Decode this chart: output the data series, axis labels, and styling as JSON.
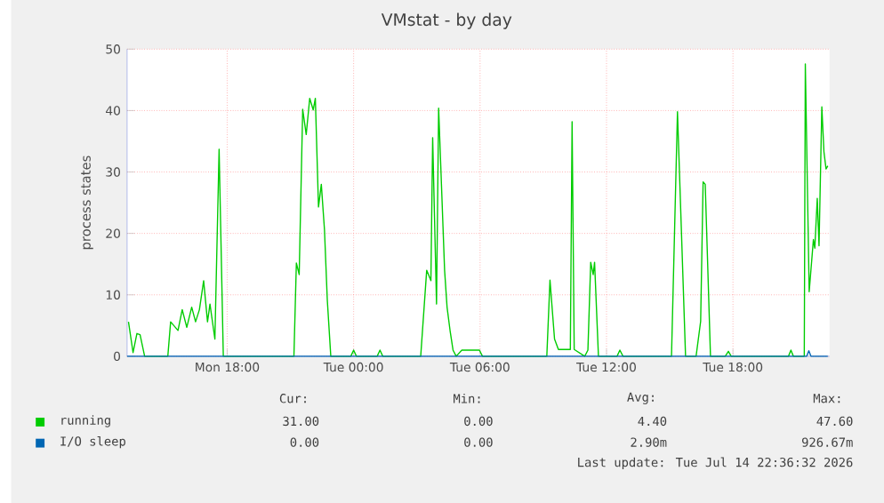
{
  "chart_data": {
    "type": "line",
    "title": "VMstat - by day",
    "ylabel": "process states",
    "xlim": [
      "2026-07-13T13:15",
      "2026-07-14T22:35"
    ],
    "ylim": [
      0,
      50
    ],
    "xticks": [
      {
        "value": "2026-07-13T18:00",
        "label": "Mon 18:00"
      },
      {
        "value": "2026-07-14T00:00",
        "label": "Tue 00:00"
      },
      {
        "value": "2026-07-14T06:00",
        "label": "Tue 06:00"
      },
      {
        "value": "2026-07-14T12:00",
        "label": "Tue 12:00"
      },
      {
        "value": "2026-07-14T18:00",
        "label": "Tue 18:00"
      }
    ],
    "yticks": [
      0,
      10,
      20,
      30,
      40,
      50
    ],
    "grid": true,
    "legend": "bottom",
    "series": [
      {
        "name": "running",
        "color": "#00cc00",
        "x": [
          "2026-07-13T13:19",
          "2026-07-13T13:32",
          "2026-07-13T13:43",
          "2026-07-13T13:52",
          "2026-07-13T14:05",
          "2026-07-13T15:11",
          "2026-07-13T15:19",
          "2026-07-13T15:40",
          "2026-07-13T15:52",
          "2026-07-13T16:05",
          "2026-07-13T16:19",
          "2026-07-13T16:30",
          "2026-07-13T16:41",
          "2026-07-13T16:53",
          "2026-07-13T17:04",
          "2026-07-13T17:11",
          "2026-07-13T17:25",
          "2026-07-13T17:37",
          "2026-07-13T17:49",
          "2026-07-13T21:10",
          "2026-07-13T21:17",
          "2026-07-13T21:25",
          "2026-07-13T21:35",
          "2026-07-13T21:45",
          "2026-07-13T21:55",
          "2026-07-13T22:05",
          "2026-07-13T22:11",
          "2026-07-13T22:20",
          "2026-07-13T22:28",
          "2026-07-13T22:37",
          "2026-07-13T22:45",
          "2026-07-13T22:55",
          "2026-07-13T23:52",
          "2026-07-14T00:00",
          "2026-07-14T00:08",
          "2026-07-14T01:07",
          "2026-07-14T01:15",
          "2026-07-14T01:23",
          "2026-07-14T03:11",
          "2026-07-14T03:28",
          "2026-07-14T03:40",
          "2026-07-14T03:45",
          "2026-07-14T03:56",
          "2026-07-14T04:02",
          "2026-07-14T04:10",
          "2026-07-14T04:19",
          "2026-07-14T04:26",
          "2026-07-14T04:35",
          "2026-07-14T04:43",
          "2026-07-14T04:52",
          "2026-07-14T05:08",
          "2026-07-14T05:58",
          "2026-07-14T06:07",
          "2026-07-14T09:10",
          "2026-07-14T09:19",
          "2026-07-14T09:32",
          "2026-07-14T09:43",
          "2026-07-14T10:17",
          "2026-07-14T10:22",
          "2026-07-14T10:28",
          "2026-07-14T10:58",
          "2026-07-14T11:07",
          "2026-07-14T11:15",
          "2026-07-14T11:22",
          "2026-07-14T11:26",
          "2026-07-14T11:37",
          "2026-07-14T12:30",
          "2026-07-14T12:38",
          "2026-07-14T12:47",
          "2026-07-14T15:05",
          "2026-07-14T15:22",
          "2026-07-14T15:45",
          "2026-07-14T16:15",
          "2026-07-14T16:28",
          "2026-07-14T16:35",
          "2026-07-14T16:41",
          "2026-07-14T16:56",
          "2026-07-14T17:38",
          "2026-07-14T17:47",
          "2026-07-14T17:55",
          "2026-07-14T20:38",
          "2026-07-14T20:45",
          "2026-07-14T20:52",
          "2026-07-14T21:23",
          "2026-07-14T21:26",
          "2026-07-14T21:37",
          "2026-07-14T21:49",
          "2026-07-14T21:53",
          "2026-07-14T22:00",
          "2026-07-14T22:05",
          "2026-07-14T22:13",
          "2026-07-14T22:19",
          "2026-07-14T22:25",
          "2026-07-14T22:30"
        ],
        "values": [
          5.6,
          0.6,
          3.7,
          3.5,
          0,
          0,
          5.6,
          4.2,
          7.6,
          4.7,
          8,
          5.6,
          7.6,
          12.3,
          5.6,
          8.5,
          2.8,
          33.7,
          0,
          0,
          15.2,
          13.3,
          40.2,
          36.1,
          42,
          40.1,
          42,
          24.3,
          28,
          20.6,
          9.2,
          0,
          0,
          1,
          0,
          0,
          1,
          0,
          0,
          14,
          12.3,
          35.6,
          8.5,
          40.4,
          28,
          14,
          8,
          4,
          1,
          0,
          1,
          1,
          0,
          0,
          12.4,
          2.8,
          1.1,
          1.1,
          38.2,
          1.1,
          0,
          1,
          15.3,
          13.3,
          15.3,
          0,
          0,
          1,
          0,
          0,
          39.8,
          0,
          0,
          5.7,
          28.4,
          28,
          0,
          0,
          0.8,
          0,
          0,
          1,
          0,
          0,
          47.6,
          10.5,
          19,
          17.6,
          25.7,
          18,
          40.6,
          33.3,
          30.5,
          31
        ]
      },
      {
        "name": "I/O sleep",
        "color": "#0066b3",
        "x": [
          "2026-07-13T13:15",
          "2026-07-14T21:30",
          "2026-07-14T21:36",
          "2026-07-14T21:42",
          "2026-07-14T22:30"
        ],
        "values": [
          0,
          0,
          0.9,
          0,
          0
        ]
      }
    ],
    "annotations": [
      "Cur:",
      "Min:",
      "Avg:",
      "Max:",
      "31.00",
      "0.00",
      "4.40",
      "47.60",
      "0.00",
      "0.00",
      "2.90m",
      "926.67m",
      "Last update: Tue Jul 14 22:36:32 2026"
    ]
  }
}
